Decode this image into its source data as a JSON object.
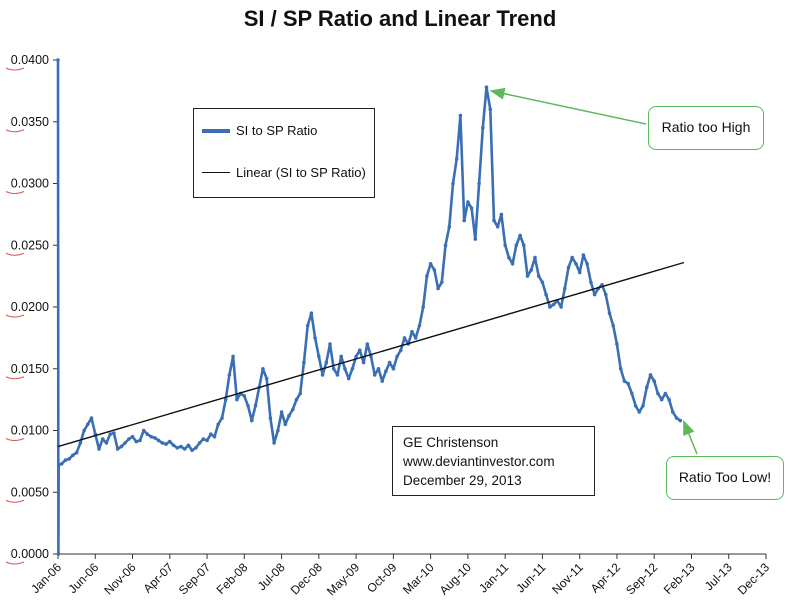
{
  "chart_data": {
    "type": "line",
    "title": "SI / SP Ratio and Linear Trend",
    "xlabel": "",
    "ylabel": "",
    "ylim": [
      0,
      0.04
    ],
    "y_ticks": [
      "0.0000",
      "0.0050",
      "0.0100",
      "0.0150",
      "0.0200",
      "0.0250",
      "0.0300",
      "0.0350",
      "0.0400"
    ],
    "x_tick_labels": [
      "Jan-06",
      "Jun-06",
      "Nov-06",
      "Apr-07",
      "Sep-07",
      "Feb-08",
      "Jul-08",
      "Dec-08",
      "May-09",
      "Oct-09",
      "Mar-10",
      "Aug-10",
      "Jan-11",
      "Jun-11",
      "Nov-11",
      "Apr-12",
      "Sep-12",
      "Feb-13",
      "Jul-13",
      "Dec-13"
    ],
    "x_range_months": [
      0,
      95
    ],
    "series": [
      {
        "name": "SI to SP Ratio",
        "color": "#3a6fb5",
        "points": [
          [
            0,
            0.04
          ],
          [
            0.05,
            0.0
          ],
          [
            0.1,
            0.0072
          ],
          [
            0.5,
            0.0073
          ],
          [
            1,
            0.0076
          ],
          [
            1.5,
            0.0077
          ],
          [
            2,
            0.008
          ],
          [
            2.5,
            0.0082
          ],
          [
            3,
            0.009
          ],
          [
            3.5,
            0.01
          ],
          [
            4,
            0.0105
          ],
          [
            4.5,
            0.011
          ],
          [
            5,
            0.0097
          ],
          [
            5.5,
            0.0085
          ],
          [
            6,
            0.0093
          ],
          [
            6.5,
            0.009
          ],
          [
            7,
            0.0097
          ],
          [
            7.5,
            0.0098
          ],
          [
            8,
            0.0085
          ],
          [
            8.5,
            0.0087
          ],
          [
            9,
            0.009
          ],
          [
            9.5,
            0.0093
          ],
          [
            10,
            0.0095
          ],
          [
            10.5,
            0.0091
          ],
          [
            11,
            0.0092
          ],
          [
            11.5,
            0.01
          ],
          [
            12,
            0.0097
          ],
          [
            12.5,
            0.0095
          ],
          [
            13,
            0.0094
          ],
          [
            13.5,
            0.0092
          ],
          [
            14,
            0.009
          ],
          [
            14.5,
            0.0089
          ],
          [
            15,
            0.0091
          ],
          [
            15.5,
            0.0088
          ],
          [
            16,
            0.0086
          ],
          [
            16.5,
            0.0087
          ],
          [
            17,
            0.0085
          ],
          [
            17.5,
            0.0088
          ],
          [
            18,
            0.0084
          ],
          [
            18.5,
            0.0086
          ],
          [
            19,
            0.009
          ],
          [
            19.5,
            0.0093
          ],
          [
            20,
            0.0092
          ],
          [
            20.5,
            0.0097
          ],
          [
            21,
            0.0095
          ],
          [
            21.5,
            0.0105
          ],
          [
            22,
            0.011
          ],
          [
            22.5,
            0.0125
          ],
          [
            23,
            0.0145
          ],
          [
            23.5,
            0.016
          ],
          [
            24,
            0.0125
          ],
          [
            24.5,
            0.013
          ],
          [
            25,
            0.0128
          ],
          [
            25.5,
            0.012
          ],
          [
            26,
            0.0108
          ],
          [
            26.5,
            0.012
          ],
          [
            27,
            0.0135
          ],
          [
            27.5,
            0.015
          ],
          [
            28,
            0.0142
          ],
          [
            28.5,
            0.011
          ],
          [
            29,
            0.009
          ],
          [
            29.5,
            0.01
          ],
          [
            30,
            0.0115
          ],
          [
            30.5,
            0.0105
          ],
          [
            31,
            0.0112
          ],
          [
            31.5,
            0.0117
          ],
          [
            32,
            0.0125
          ],
          [
            32.5,
            0.013
          ],
          [
            33,
            0.0155
          ],
          [
            33.5,
            0.0185
          ],
          [
            34,
            0.0195
          ],
          [
            34.5,
            0.0175
          ],
          [
            35,
            0.016
          ],
          [
            35.5,
            0.0145
          ],
          [
            36,
            0.0155
          ],
          [
            36.5,
            0.017
          ],
          [
            37,
            0.015
          ],
          [
            37.5,
            0.0145
          ],
          [
            38,
            0.016
          ],
          [
            38.5,
            0.015
          ],
          [
            39,
            0.0142
          ],
          [
            39.5,
            0.015
          ],
          [
            40,
            0.016
          ],
          [
            40.5,
            0.0165
          ],
          [
            41,
            0.0155
          ],
          [
            41.5,
            0.017
          ],
          [
            42,
            0.016
          ],
          [
            42.5,
            0.0145
          ],
          [
            43,
            0.015
          ],
          [
            43.5,
            0.014
          ],
          [
            44,
            0.0148
          ],
          [
            44.5,
            0.0155
          ],
          [
            45,
            0.015
          ],
          [
            45.5,
            0.016
          ],
          [
            46,
            0.0165
          ],
          [
            46.5,
            0.0175
          ],
          [
            47,
            0.017
          ],
          [
            47.5,
            0.018
          ],
          [
            48,
            0.0175
          ],
          [
            48.5,
            0.0185
          ],
          [
            49,
            0.02
          ],
          [
            49.5,
            0.0225
          ],
          [
            50,
            0.0235
          ],
          [
            50.5,
            0.023
          ],
          [
            51,
            0.0215
          ],
          [
            51.5,
            0.022
          ],
          [
            52,
            0.025
          ],
          [
            52.5,
            0.0265
          ],
          [
            53,
            0.03
          ],
          [
            53.5,
            0.032
          ],
          [
            54,
            0.0355
          ],
          [
            54.5,
            0.027
          ],
          [
            55,
            0.0285
          ],
          [
            55.5,
            0.028
          ],
          [
            56,
            0.0255
          ],
          [
            56.5,
            0.03
          ],
          [
            57,
            0.0345
          ],
          [
            57.5,
            0.0378
          ],
          [
            58,
            0.036
          ],
          [
            58.5,
            0.027
          ],
          [
            59,
            0.0265
          ],
          [
            59.5,
            0.0275
          ],
          [
            60,
            0.025
          ],
          [
            60.5,
            0.024
          ],
          [
            61,
            0.0235
          ],
          [
            61.5,
            0.025
          ],
          [
            62,
            0.0258
          ],
          [
            62.5,
            0.025
          ],
          [
            63,
            0.0225
          ],
          [
            63.5,
            0.023
          ],
          [
            64,
            0.024
          ],
          [
            64.5,
            0.0225
          ],
          [
            65,
            0.022
          ],
          [
            65.5,
            0.021
          ],
          [
            66,
            0.02
          ],
          [
            66.5,
            0.0202
          ],
          [
            67,
            0.0205
          ],
          [
            67.5,
            0.02
          ],
          [
            68,
            0.0215
          ],
          [
            68.5,
            0.0232
          ],
          [
            69,
            0.024
          ],
          [
            69.5,
            0.0235
          ],
          [
            70,
            0.0228
          ],
          [
            70.5,
            0.0242
          ],
          [
            71,
            0.0235
          ],
          [
            71.5,
            0.022
          ],
          [
            72,
            0.021
          ],
          [
            72.5,
            0.0215
          ],
          [
            73,
            0.0218
          ],
          [
            73.5,
            0.021
          ],
          [
            74,
            0.0195
          ],
          [
            74.5,
            0.0185
          ],
          [
            75,
            0.017
          ],
          [
            75.5,
            0.015
          ],
          [
            76,
            0.014
          ],
          [
            76.5,
            0.0138
          ],
          [
            77,
            0.013
          ],
          [
            77.5,
            0.012
          ],
          [
            78,
            0.0115
          ],
          [
            78.5,
            0.012
          ],
          [
            79,
            0.0135
          ],
          [
            79.5,
            0.0145
          ],
          [
            80,
            0.014
          ],
          [
            80.5,
            0.013
          ],
          [
            81,
            0.0125
          ],
          [
            81.5,
            0.013
          ],
          [
            82,
            0.0125
          ],
          [
            82.5,
            0.0115
          ],
          [
            83,
            0.011
          ],
          [
            83.5,
            0.0108
          ]
        ]
      },
      {
        "name": "Linear (SI to SP Ratio)",
        "color": "#111111",
        "points": [
          [
            0,
            0.0087
          ],
          [
            84,
            0.0236
          ]
        ]
      }
    ],
    "annotations": [
      {
        "text": "Ratio too High",
        "x": 57.5,
        "y": 0.0378
      },
      {
        "text": "Ratio Too Low!",
        "x": 83.5,
        "y": 0.0108
      }
    ],
    "credit_lines": [
      "GE Christenson",
      "www.deviantinvestor.com",
      "December 29, 2013"
    ],
    "legend_position": "upper-left"
  }
}
